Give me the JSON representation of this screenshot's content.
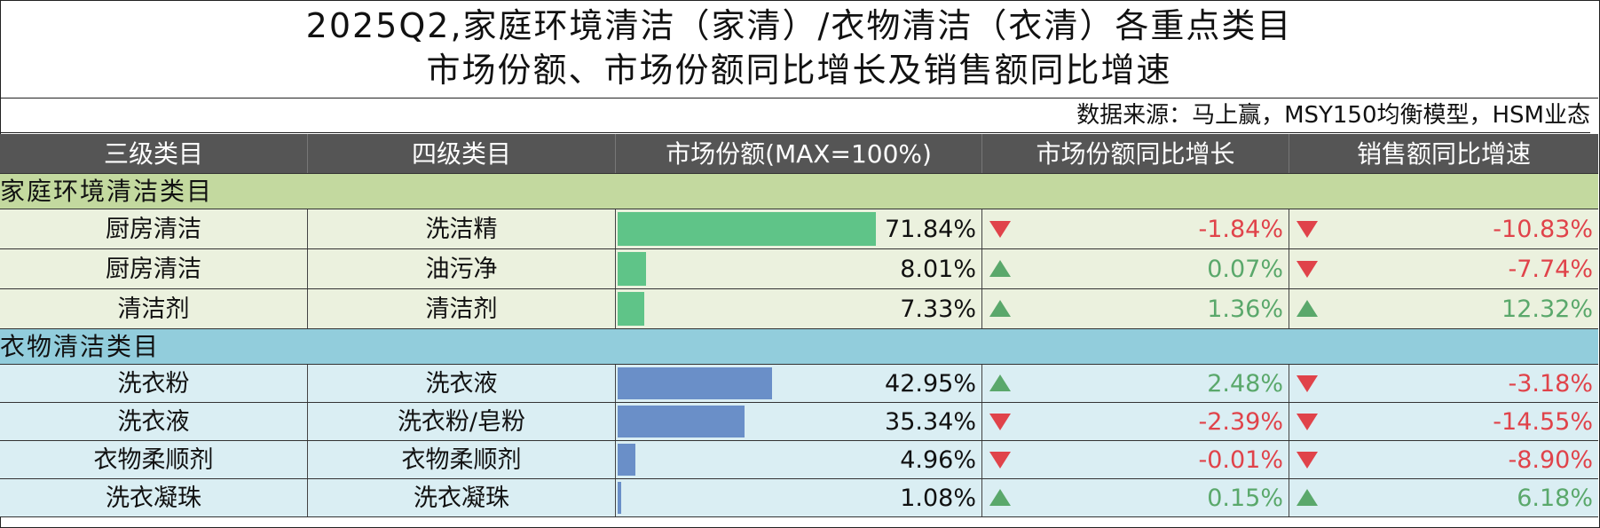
{
  "title": {
    "line1": "2025Q2,家庭环境清洁（家清）/衣物清洁（衣清）各重点类目",
    "line2": "市场份额、市场份额同比增长及销售额同比增速"
  },
  "source": "数据来源：马上赢，MSY150均衡模型，HSM业态",
  "headers": [
    "三级类目",
    "四级类目",
    "市场份额(MAX=100%)",
    "市场份额同比增长",
    "销售额同比增速"
  ],
  "colors": {
    "header_bg": "#555555",
    "home_section": "#c3d99f",
    "home_row": "#ebf1de",
    "home_bar": "#5fc488",
    "cloth_section": "#92cddc",
    "cloth_row": "#daeef3",
    "cloth_bar": "#6a8fc8",
    "negative": "#e0434a",
    "positive": "#5aa86b"
  },
  "chart_data": {
    "type": "table",
    "share_max": 100,
    "sections": [
      {
        "name": "家庭环境清洁类目",
        "rows": [
          {
            "cat3": "厨房清洁",
            "cat4": "洗洁精",
            "share": 71.84,
            "share_label": "71.84%",
            "share_yoy": -1.84,
            "share_yoy_label": "-1.84%",
            "sales_yoy": -10.83,
            "sales_yoy_label": "-10.83%"
          },
          {
            "cat3": "厨房清洁",
            "cat4": "油污净",
            "share": 8.01,
            "share_label": "8.01%",
            "share_yoy": 0.07,
            "share_yoy_label": "0.07%",
            "sales_yoy": -7.74,
            "sales_yoy_label": "-7.74%"
          },
          {
            "cat3": "清洁剂",
            "cat4": "清洁剂",
            "share": 7.33,
            "share_label": "7.33%",
            "share_yoy": 1.36,
            "share_yoy_label": "1.36%",
            "sales_yoy": 12.32,
            "sales_yoy_label": "12.32%"
          }
        ]
      },
      {
        "name": "衣物清洁类目",
        "rows": [
          {
            "cat3": "洗衣粉",
            "cat4": "洗衣液",
            "share": 42.95,
            "share_label": "42.95%",
            "share_yoy": 2.48,
            "share_yoy_label": "2.48%",
            "sales_yoy": -3.18,
            "sales_yoy_label": "-3.18%"
          },
          {
            "cat3": "洗衣液",
            "cat4": "洗衣粉/皂粉",
            "share": 35.34,
            "share_label": "35.34%",
            "share_yoy": -2.39,
            "share_yoy_label": "-2.39%",
            "sales_yoy": -14.55,
            "sales_yoy_label": "-14.55%"
          },
          {
            "cat3": "衣物柔顺剂",
            "cat4": "衣物柔顺剂",
            "share": 4.96,
            "share_label": "4.96%",
            "share_yoy": -0.01,
            "share_yoy_label": "-0.01%",
            "sales_yoy": -8.9,
            "sales_yoy_label": "-8.90%"
          },
          {
            "cat3": "洗衣凝珠",
            "cat4": "洗衣凝珠",
            "share": 1.08,
            "share_label": "1.08%",
            "share_yoy": 0.15,
            "share_yoy_label": "0.15%",
            "sales_yoy": 6.18,
            "sales_yoy_label": "6.18%"
          }
        ]
      }
    ]
  }
}
